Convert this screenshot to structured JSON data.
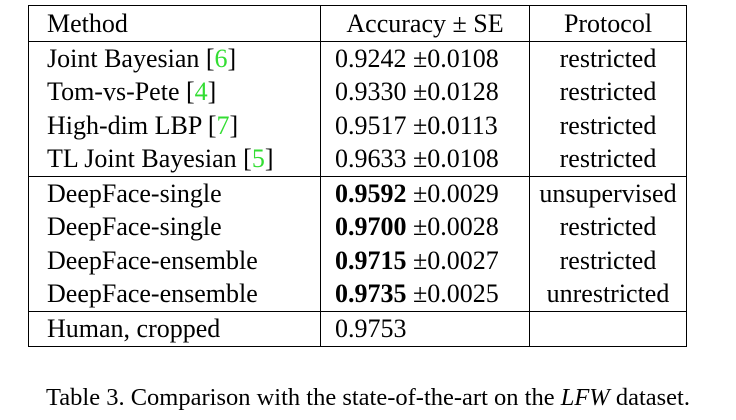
{
  "table": {
    "headers": {
      "method": "Method",
      "accuracy": "Accuracy ± SE",
      "protocol": "Protocol"
    },
    "groups": [
      [
        {
          "method": "Joint Bayesian",
          "ref": "6",
          "acc": "0.9242",
          "se": "±0.0108",
          "bold": false,
          "protocol": "restricted"
        },
        {
          "method": "Tom-vs-Pete",
          "ref": "4",
          "acc": "0.9330",
          "se": "±0.0128",
          "bold": false,
          "protocol": "restricted"
        },
        {
          "method": "High-dim LBP",
          "ref": "7",
          "acc": "0.9517",
          "se": "±0.0113",
          "bold": false,
          "protocol": "restricted"
        },
        {
          "method": "TL Joint Bayesian",
          "ref": "5",
          "acc": "0.9633",
          "se": "±0.0108",
          "bold": false,
          "protocol": "restricted"
        }
      ],
      [
        {
          "method": "DeepFace-single",
          "ref": "",
          "acc": "0.9592",
          "se": "±0.0029",
          "bold": true,
          "protocol": "unsupervised"
        },
        {
          "method": "DeepFace-single",
          "ref": "",
          "acc": "0.9700",
          "se": "±0.0028",
          "bold": true,
          "protocol": "restricted"
        },
        {
          "method": "DeepFace-ensemble",
          "ref": "",
          "acc": "0.9715",
          "se": "±0.0027",
          "bold": true,
          "protocol": "restricted"
        },
        {
          "method": "DeepFace-ensemble",
          "ref": "",
          "acc": "0.9735",
          "se": "±0.0025",
          "bold": true,
          "protocol": "unrestricted"
        }
      ],
      [
        {
          "method": "Human, cropped",
          "ref": "",
          "acc": "0.9753",
          "se": "",
          "bold": false,
          "protocol": ""
        }
      ]
    ]
  },
  "caption": {
    "prefix": "Table 3. Comparison with the state-of-the-art on the ",
    "emph": "LFW",
    "suffix": " dataset."
  }
}
